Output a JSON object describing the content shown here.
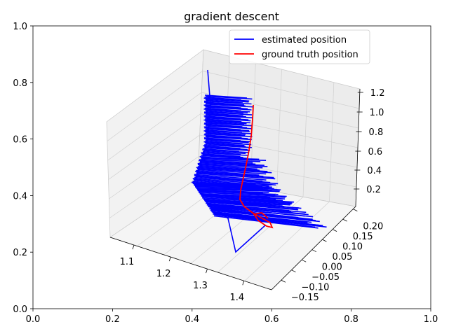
{
  "chart_data": {
    "type": "line",
    "title": "gradient descent",
    "projection": "3d",
    "background_axes": {
      "xlim": [
        0.0,
        1.0
      ],
      "ylim": [
        0.0,
        1.0
      ],
      "x_ticks": [
        "0.0",
        "0.2",
        "0.4",
        "0.6",
        "0.8",
        "1.0"
      ],
      "y_ticks": [
        "0.0",
        "0.2",
        "0.4",
        "0.6",
        "0.8",
        "1.0"
      ]
    },
    "axes3d": {
      "x_ticks": [
        "1.1",
        "1.2",
        "1.3",
        "1.4"
      ],
      "y_ticks": [
        "0.20",
        "0.15",
        "0.10",
        "0.05",
        "0.00",
        "−0.05",
        "−0.10",
        "−0.15"
      ],
      "z_ticks": [
        "1.2",
        "1.0",
        "0.8",
        "0.6",
        "0.4",
        "0.2"
      ],
      "grid": true
    },
    "legend": {
      "placement": "upper right",
      "entries": [
        {
          "label": "estimated position",
          "color": "#0000ff"
        },
        {
          "label": "ground truth position",
          "color": "#ff0000"
        }
      ]
    },
    "series": [
      {
        "name": "estimated position",
        "color": "#0000ff",
        "x": [
          1.05,
          1.08,
          1.12,
          1.15,
          1.18,
          1.2,
          1.22,
          1.24,
          1.26,
          1.27,
          1.28,
          1.3,
          1.32,
          1.34,
          1.35,
          1.36,
          1.38,
          1.3,
          1.25,
          1.2
        ],
        "y": [
          0.05,
          0.06,
          0.07,
          0.08,
          0.09,
          0.1,
          0.11,
          0.12,
          0.13,
          0.14,
          0.15,
          0.17,
          0.19,
          0.2,
          0.15,
          0.1,
          0.05,
          -0.05,
          -0.1,
          -0.15
        ],
        "z": [
          1.2,
          1.1,
          1.0,
          0.9,
          0.8,
          0.7,
          0.6,
          0.5,
          0.45,
          0.4,
          0.35,
          0.3,
          0.28,
          0.25,
          0.2,
          0.18,
          0.15,
          0.1,
          0.05,
          0.02
        ]
      },
      {
        "name": "ground truth position",
        "color": "#ff0000",
        "x": [
          1.3,
          1.3,
          1.3,
          1.29,
          1.29,
          1.29,
          1.28,
          1.28,
          1.29,
          1.31,
          1.33,
          1.34,
          1.33,
          1.32
        ],
        "y": [
          0.05,
          0.05,
          0.05,
          0.05,
          0.05,
          0.05,
          0.05,
          0.04,
          0.03,
          0.01,
          0.0,
          -0.02,
          -0.02,
          -0.01
        ],
        "z": [
          1.0,
          0.9,
          0.8,
          0.7,
          0.6,
          0.5,
          0.45,
          0.38,
          0.33,
          0.3,
          0.27,
          0.24,
          0.22,
          0.21
        ]
      }
    ]
  }
}
